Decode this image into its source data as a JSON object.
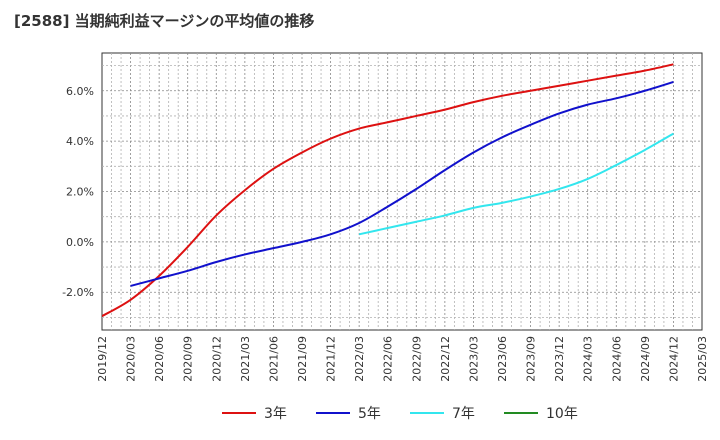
{
  "chart_data": {
    "type": "line",
    "title": "[2588]  当期純利益マージンの平均値の推移",
    "x": [
      "2019/12",
      "2020/03",
      "2020/06",
      "2020/09",
      "2020/12",
      "2021/03",
      "2021/06",
      "2021/09",
      "2021/12",
      "2022/03",
      "2022/06",
      "2022/09",
      "2022/12",
      "2023/03",
      "2023/06",
      "2023/09",
      "2023/12",
      "2024/03",
      "2024/06",
      "2024/09",
      "2024/12",
      "2025/03"
    ],
    "yticks": [
      "-2.0%",
      "0.0%",
      "2.0%",
      "4.0%",
      "6.0%"
    ],
    "ylim": [
      -3.5,
      7.5
    ],
    "grid": true,
    "legend_position": "bottom",
    "series": [
      {
        "name": "3年",
        "color": "#dd1111",
        "values": [
          -2.95,
          -2.3,
          -1.35,
          -0.2,
          1.05,
          2.05,
          2.9,
          3.55,
          4.1,
          4.5,
          4.75,
          5.0,
          5.25,
          5.55,
          5.8,
          6.0,
          6.2,
          6.4,
          6.6,
          6.8,
          7.05,
          null
        ]
      },
      {
        "name": "5年",
        "color": "#1111cc",
        "values": [
          null,
          -1.75,
          -1.45,
          -1.15,
          -0.8,
          -0.5,
          -0.25,
          0.0,
          0.3,
          0.75,
          1.4,
          2.1,
          2.85,
          3.55,
          4.15,
          4.65,
          5.1,
          5.45,
          5.7,
          6.0,
          6.35,
          null
        ]
      },
      {
        "name": "7年",
        "color": "#33e6ee",
        "values": [
          null,
          null,
          null,
          null,
          null,
          null,
          null,
          null,
          null,
          0.3,
          0.55,
          0.8,
          1.05,
          1.35,
          1.55,
          1.8,
          2.1,
          2.5,
          3.05,
          3.65,
          4.3,
          null
        ]
      },
      {
        "name": "10年",
        "color": "#228b22",
        "values": [
          null,
          null,
          null,
          null,
          null,
          null,
          null,
          null,
          null,
          null,
          null,
          null,
          null,
          null,
          null,
          null,
          null,
          null,
          null,
          null,
          null,
          null
        ]
      }
    ]
  }
}
